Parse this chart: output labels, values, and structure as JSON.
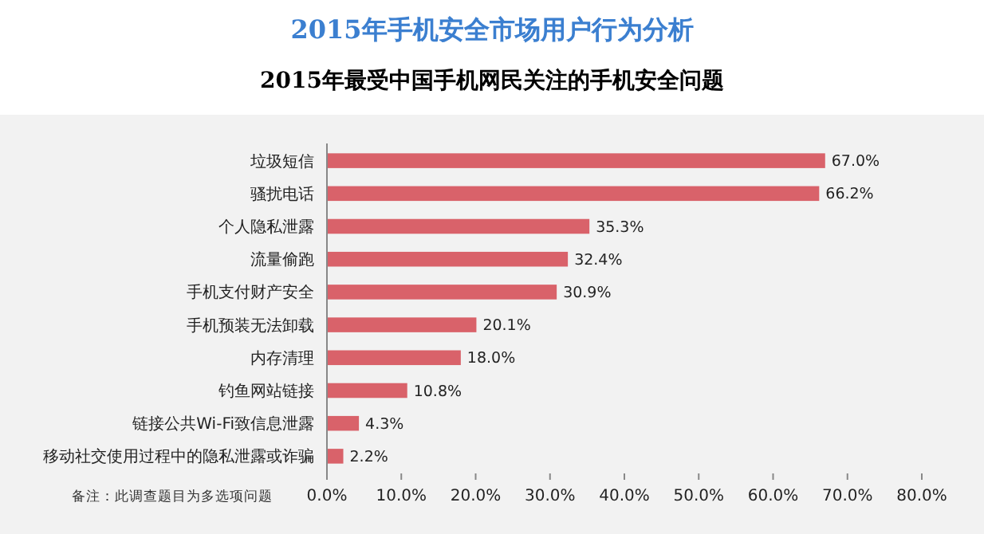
{
  "chart_data": {
    "type": "bar",
    "orientation": "horizontal",
    "title": "2015年手机安全市场用户行为分析",
    "subtitle": "2015年最受中国手机网民关注的手机安全问题",
    "categories": [
      "垃圾短信",
      "骚扰电话",
      "个人隐私泄露",
      "流量偷跑",
      "手机支付财产安全",
      "手机预装无法卸载",
      "内存清理",
      "钓鱼网站链接",
      "链接公共Wi-Fi致信息泄露",
      "移动社交使用过程中的隐私泄露或诈骗"
    ],
    "values": [
      67.0,
      66.2,
      35.3,
      32.4,
      30.9,
      20.1,
      18.0,
      10.8,
      4.3,
      2.2
    ],
    "value_labels": [
      "67.0%",
      "66.2%",
      "35.3%",
      "32.4%",
      "30.9%",
      "20.1%",
      "18.0%",
      "10.8%",
      "4.3%",
      "2.2%"
    ],
    "color": "#d9626a",
    "xlim": [
      0,
      80
    ],
    "xticks": [
      {
        "value": 0,
        "label": "0.0%"
      },
      {
        "value": 10,
        "label": "10.0%"
      },
      {
        "value": 20,
        "label": "20.0%"
      },
      {
        "value": 30,
        "label": "30.0%"
      },
      {
        "value": 40,
        "label": "40.0%"
      },
      {
        "value": 50,
        "label": "50.0%"
      },
      {
        "value": 60,
        "label": "60.0%"
      },
      {
        "value": 70,
        "label": "70.0%"
      },
      {
        "value": 80,
        "label": "80.0%"
      }
    ],
    "grid": false,
    "annotations": [
      "备注：此调查题目为多选项问题"
    ]
  }
}
